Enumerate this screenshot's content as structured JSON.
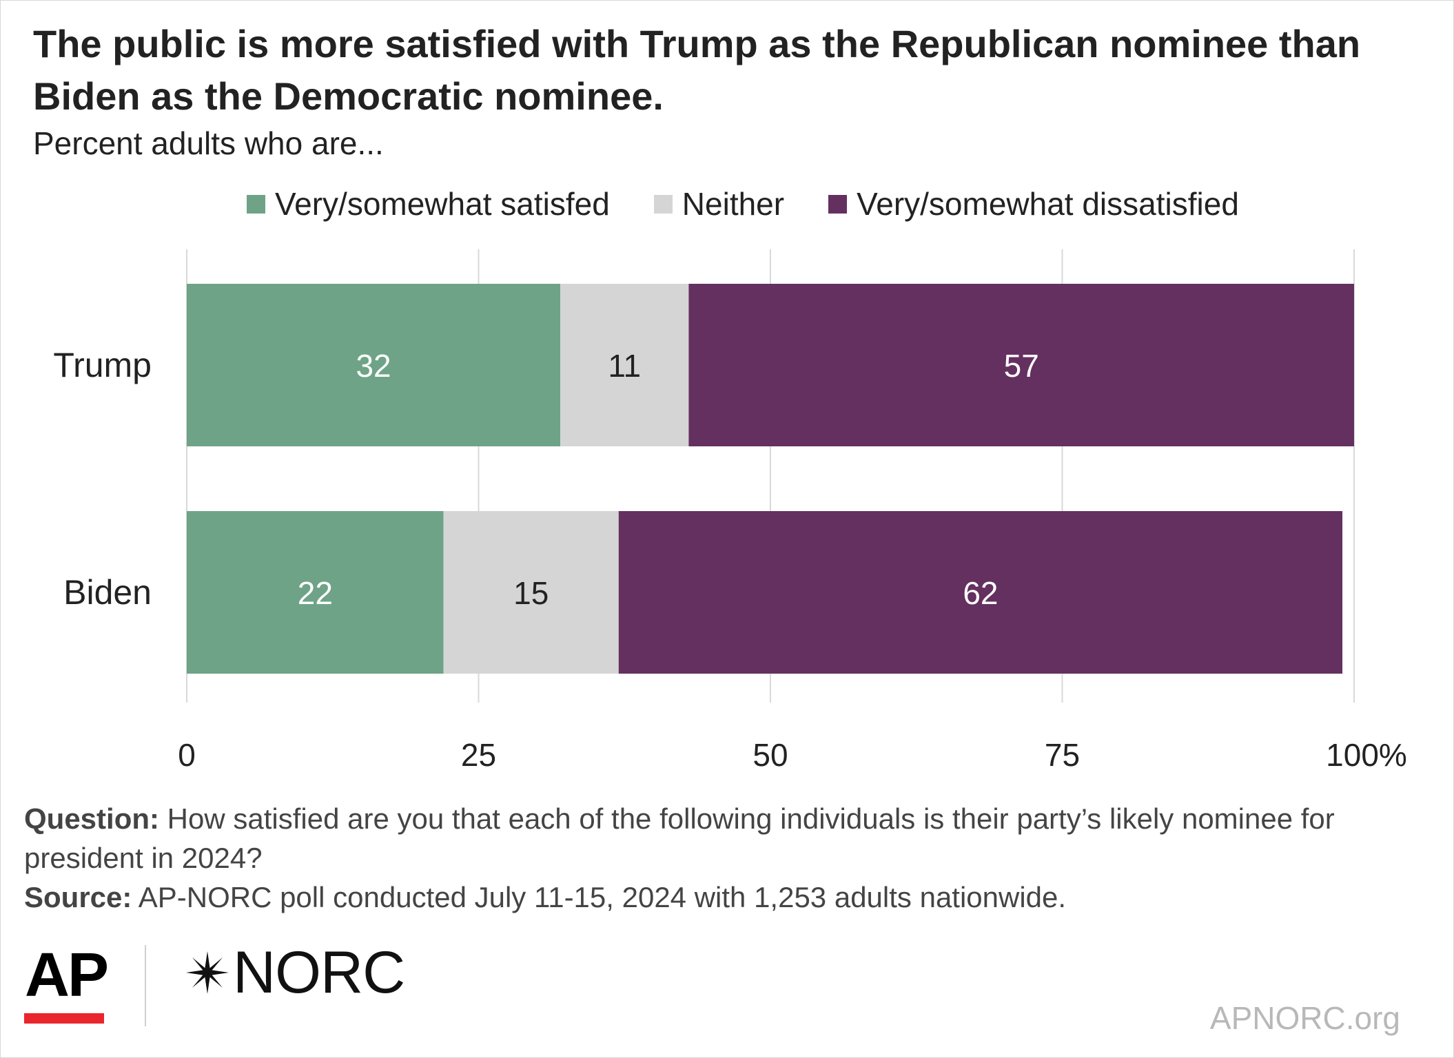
{
  "header": {
    "title": "The public is more satisfied with Trump as the Republican nominee than Biden as the Democratic nominee.",
    "subtitle": "Percent adults who are..."
  },
  "chart_data": {
    "type": "bar",
    "orientation": "horizontal",
    "stacked": true,
    "categories": [
      "Trump",
      "Biden"
    ],
    "series": [
      {
        "name": "Very/somewhat satisfed",
        "values": [
          32,
          22
        ],
        "color": "#6ea387",
        "label_color": "#ffffff"
      },
      {
        "name": "Neither",
        "values": [
          11,
          15
        ],
        "color": "#d5d5d5",
        "label_color": "#222222"
      },
      {
        "name": "Very/somewhat dissatisfied",
        "values": [
          57,
          62
        ],
        "color": "#643060",
        "label_color": "#ffffff"
      }
    ],
    "xlim": [
      0,
      100
    ],
    "xticks": [
      0,
      25,
      50,
      75,
      100
    ],
    "xtick_labels": [
      "0",
      "25",
      "50",
      "75",
      "100%"
    ],
    "grid": true,
    "legend_position": "top"
  },
  "footer": {
    "question_label": "Question:",
    "question_text": " How satisfied are you that each of the following individuals is their party’s likely nominee for president in 2024?",
    "source_label": "Source:",
    "source_text": " AP-NORC poll conducted July 11-15, 2024 with 1,253 adults nationwide.",
    "logo_ap": "AP",
    "logo_norc": "NORC",
    "site": "APNORC.org"
  }
}
